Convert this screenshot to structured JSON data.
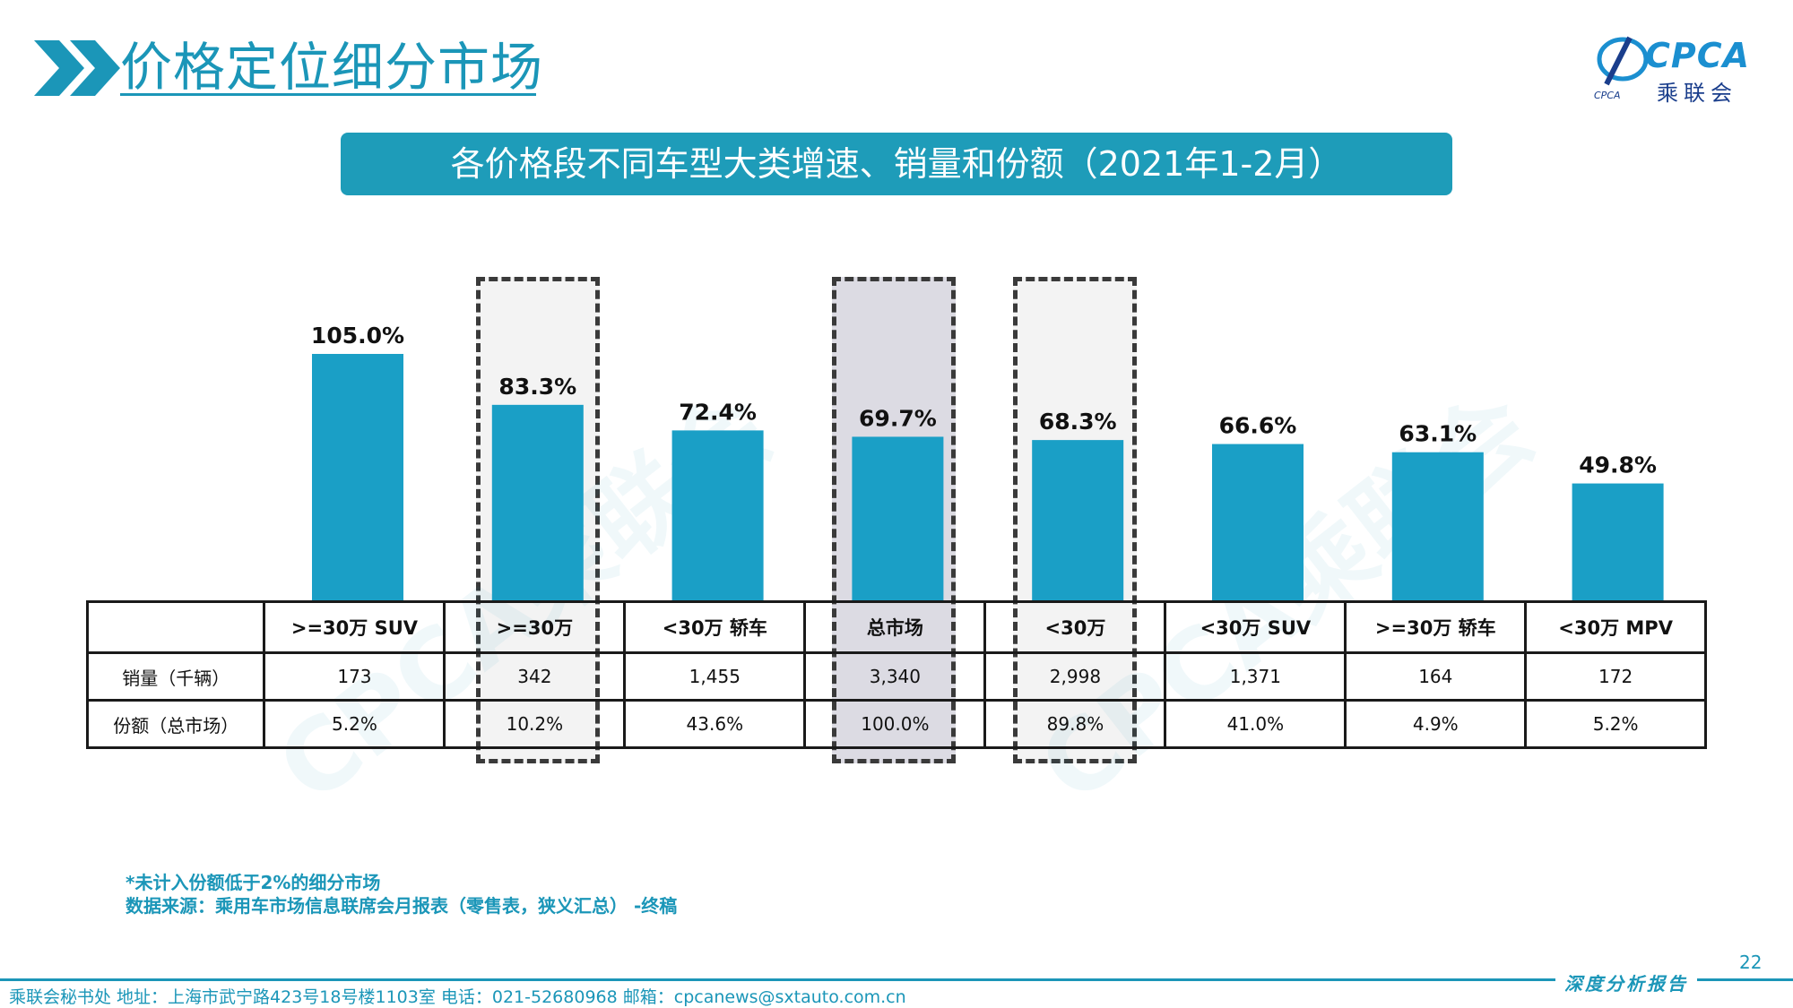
{
  "header": {
    "title": "价格定位细分市场",
    "logo_text": "CPCA",
    "logo_sub": "乘联会"
  },
  "banner_title": "各价格段不同车型大类增速、销量和份额（2021年1-2月）",
  "watermark_text": "CPCA乘联会",
  "chart_data": {
    "type": "bar",
    "categories": [
      ">=30万 SUV",
      ">=30万",
      "<30万 轿车",
      "总市场",
      "<30万",
      "<30万 SUV",
      ">=30万 轿车",
      "<30万 MPV"
    ],
    "values": [
      105.0,
      83.3,
      72.4,
      69.7,
      68.3,
      66.6,
      63.1,
      49.8
    ],
    "value_labels": [
      "105.0%",
      "83.3%",
      "72.4%",
      "69.7%",
      "68.3%",
      "66.6%",
      "63.1%",
      "49.8%"
    ],
    "ylim": [
      0,
      115
    ],
    "grid": false,
    "bar_color": "#1a9fc6",
    "highlighted": [
      1,
      3,
      4
    ]
  },
  "table": {
    "header": [
      "",
      ">=30万 SUV",
      ">=30万",
      "<30万 轿车",
      "总市场",
      "<30万",
      "<30万 SUV",
      ">=30万 轿车",
      "<30万 MPV"
    ],
    "rows": [
      [
        "销量（千辆）",
        "173",
        "342",
        "1,455",
        "3,340",
        "2,998",
        "1,371",
        "164",
        "172"
      ],
      [
        "份额（总市场）",
        "5.2%",
        "10.2%",
        "43.6%",
        "100.0%",
        "89.8%",
        "41.0%",
        "4.9%",
        "5.2%"
      ]
    ]
  },
  "footnotes": [
    "*未计入份额低于2%的细分市场",
    "数据来源：乘用车市场信息联席会月报表（零售表，狭义汇总） -终稿"
  ],
  "page_number": "22",
  "report_tag": "深度分析报告",
  "footer_info": "乘联会秘书处   地址：上海市武宁路423号18号楼1103室  电话：021-52680968   邮箱：cpcanews@sxtauto.com.cn"
}
